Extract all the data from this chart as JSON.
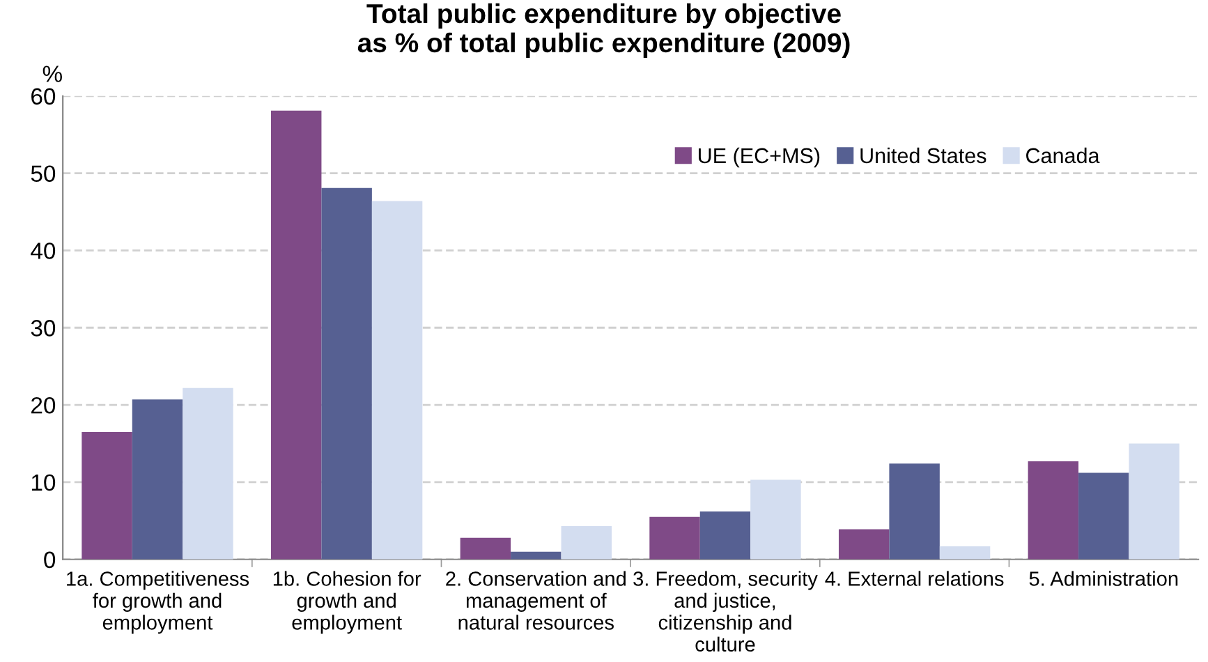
{
  "chart_data": {
    "type": "bar",
    "title": "Total public expenditure by objective\nas % of total public expenditure (2009)",
    "ylabel": "%",
    "categories": [
      "1a. Competitiveness\nfor growth and\nemployment",
      "1b. Cohesion for\ngrowth and\nemployment",
      "2. Conservation and\nmanagement of\nnatural resources",
      "3. Freedom, security\nand justice,\ncitizenship and\nculture",
      "4. External relations",
      "5. Administration"
    ],
    "series": [
      {
        "name": "UE (EC+MS)",
        "color": "#7f4a87",
        "values": [
          16.5,
          58.1,
          2.8,
          5.5,
          3.9,
          12.7
        ]
      },
      {
        "name": "United States",
        "color": "#566092",
        "values": [
          20.7,
          48.1,
          1.0,
          6.2,
          12.4,
          11.2
        ]
      },
      {
        "name": "Canada",
        "color": "#d3ddf0",
        "values": [
          22.2,
          46.4,
          4.3,
          10.3,
          1.7,
          15.0
        ]
      }
    ],
    "ylim": [
      0,
      60
    ],
    "yticks": [
      0,
      10,
      20,
      30,
      40,
      50,
      60
    ],
    "grid": "y",
    "legend": "top right"
  }
}
